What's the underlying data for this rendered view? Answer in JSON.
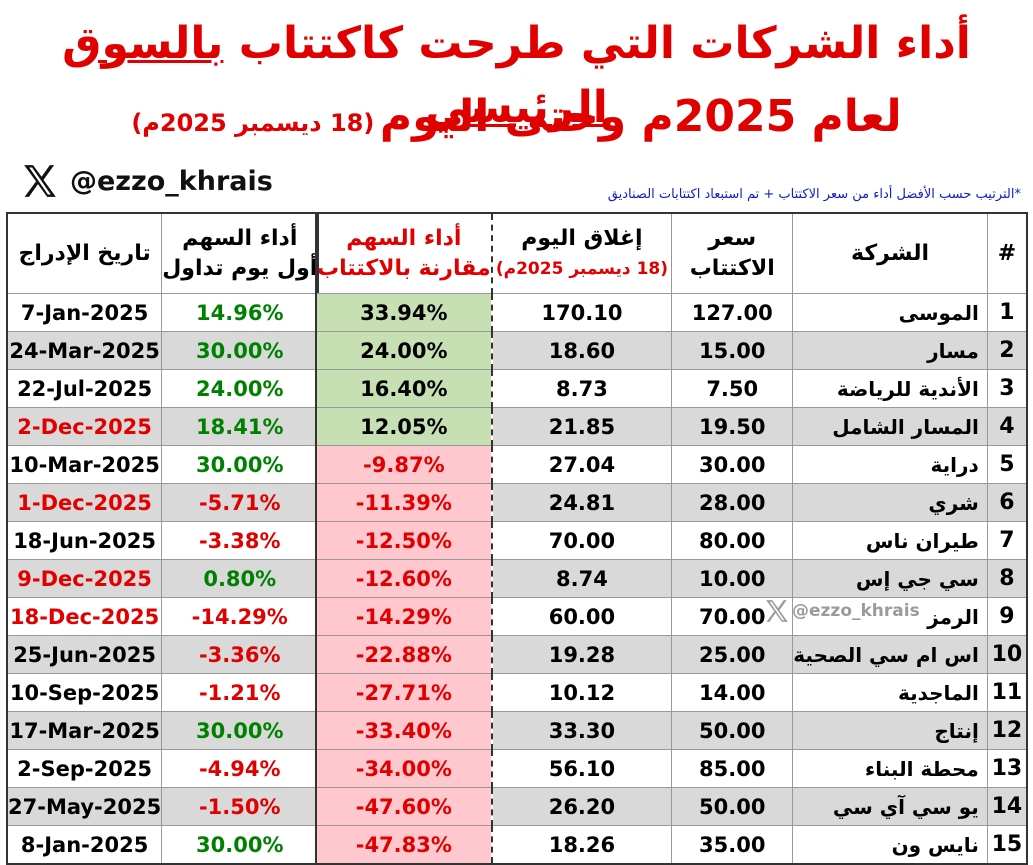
{
  "title": {
    "line1_part1": "أداء الشركات التي طرحت كاكتتاب",
    "line1_part2": "بالسوق الرئيسي",
    "line2_main": "لعام 2025م وحتى اليوم",
    "line2_sub": "(18 ديسمبر 2025م)"
  },
  "handle": "@ezzo_khrais",
  "watermark": "@ezzo_khrais",
  "note": "*الترتيب حسب الأفضل أداء من سعر الاكتتاب + تم استبعاد اكتتابات الصناديق",
  "headers": {
    "listing_date": "تاريخ الإدراج",
    "first_day_line1": "أداء السهم",
    "first_day_line2": "أول يوم تداول",
    "perf_line1": "أداء السهم",
    "perf_line2": "مقارنة بالاكتتاب",
    "close_line1": "إغلاق اليوم",
    "close_line2": "(18 ديسمبر 2025م)",
    "ipo_line1": "سعر",
    "ipo_line2": "الاكتتاب",
    "company": "الشركة",
    "rank": "#"
  },
  "colors": {
    "green": "#008000",
    "red": "#e00000",
    "positive_bg": "#c6e0b4",
    "negative_bg": "#ffc7ce",
    "alt_row": "#d9d9d9"
  },
  "rows": [
    {
      "rank": "1",
      "company": "الموسى",
      "ipo": "127.00",
      "close": "170.10",
      "perf": "33.94%",
      "first_day": "14.96%",
      "listing": "7-Jan-2025",
      "first_color": "green",
      "listing_color": "black"
    },
    {
      "rank": "2",
      "company": "مسار",
      "ipo": "15.00",
      "close": "18.60",
      "perf": "24.00%",
      "first_day": "30.00%",
      "listing": "24-Mar-2025",
      "first_color": "green",
      "listing_color": "black"
    },
    {
      "rank": "3",
      "company": "الأندية للرياضة",
      "ipo": "7.50",
      "close": "8.73",
      "perf": "16.40%",
      "first_day": "24.00%",
      "listing": "22-Jul-2025",
      "first_color": "green",
      "listing_color": "black"
    },
    {
      "rank": "4",
      "company": "المسار الشامل",
      "ipo": "19.50",
      "close": "21.85",
      "perf": "12.05%",
      "first_day": "18.41%",
      "listing": "2-Dec-2025",
      "first_color": "green",
      "listing_color": "red"
    },
    {
      "rank": "5",
      "company": "دراية",
      "ipo": "30.00",
      "close": "27.04",
      "perf": "-9.87%",
      "first_day": "30.00%",
      "listing": "10-Mar-2025",
      "first_color": "green",
      "listing_color": "black"
    },
    {
      "rank": "6",
      "company": "شري",
      "ipo": "28.00",
      "close": "24.81",
      "perf": "-11.39%",
      "first_day": "-5.71%",
      "listing": "1-Dec-2025",
      "first_color": "red",
      "listing_color": "red"
    },
    {
      "rank": "7",
      "company": "طيران ناس",
      "ipo": "80.00",
      "close": "70.00",
      "perf": "-12.50%",
      "first_day": "-3.38%",
      "listing": "18-Jun-2025",
      "first_color": "red",
      "listing_color": "black"
    },
    {
      "rank": "8",
      "company": "سي جي إس",
      "ipo": "10.00",
      "close": "8.74",
      "perf": "-12.60%",
      "first_day": "0.80%",
      "listing": "9-Dec-2025",
      "first_color": "green",
      "listing_color": "red"
    },
    {
      "rank": "9",
      "company": "الرمز",
      "ipo": "70.00",
      "close": "60.00",
      "perf": "-14.29%",
      "first_day": "-14.29%",
      "listing": "18-Dec-2025",
      "first_color": "red",
      "listing_color": "red"
    },
    {
      "rank": "10",
      "company": "اس ام سي الصحية",
      "ipo": "25.00",
      "close": "19.28",
      "perf": "-22.88%",
      "first_day": "-3.36%",
      "listing": "25-Jun-2025",
      "first_color": "red",
      "listing_color": "black"
    },
    {
      "rank": "11",
      "company": "الماجدية",
      "ipo": "14.00",
      "close": "10.12",
      "perf": "-27.71%",
      "first_day": "-1.21%",
      "listing": "10-Sep-2025",
      "first_color": "red",
      "listing_color": "black"
    },
    {
      "rank": "12",
      "company": "إنتاج",
      "ipo": "50.00",
      "close": "33.30",
      "perf": "-33.40%",
      "first_day": "30.00%",
      "listing": "17-Mar-2025",
      "first_color": "green",
      "listing_color": "black"
    },
    {
      "rank": "13",
      "company": "محطة البناء",
      "ipo": "85.00",
      "close": "56.10",
      "perf": "-34.00%",
      "first_day": "-4.94%",
      "listing": "2-Sep-2025",
      "first_color": "red",
      "listing_color": "black"
    },
    {
      "rank": "14",
      "company": "يو سي آي سي",
      "ipo": "50.00",
      "close": "26.20",
      "perf": "-47.60%",
      "first_day": "-1.50%",
      "listing": "27-May-2025",
      "first_color": "red",
      "listing_color": "black"
    },
    {
      "rank": "15",
      "company": "نايس ون",
      "ipo": "35.00",
      "close": "18.26",
      "perf": "-47.83%",
      "first_day": "30.00%",
      "listing": "8-Jan-2025",
      "first_color": "green",
      "listing_color": "black"
    }
  ]
}
